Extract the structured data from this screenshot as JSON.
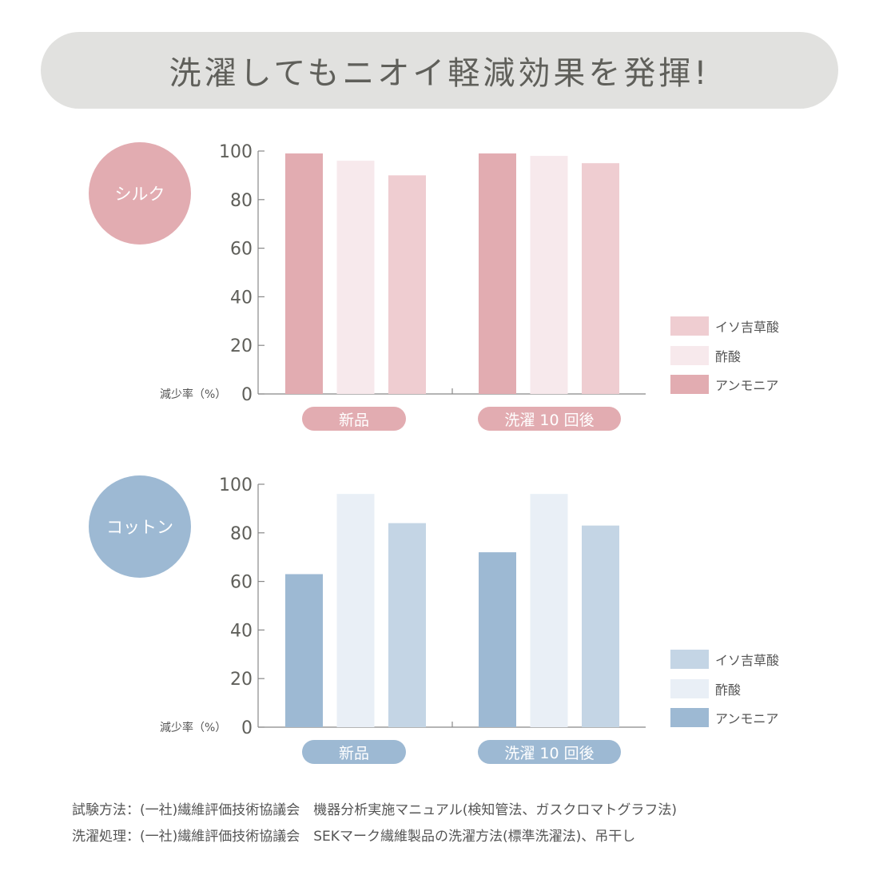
{
  "title": "洗濯してもニオイ軽減効果を発揮!",
  "chart_data": [
    {
      "type": "bar",
      "fabric": "シルク",
      "ylabel": "減少率（%）",
      "ylim": [
        0,
        100
      ],
      "yticks": [
        "0",
        "20",
        "40",
        "60",
        "80",
        "100"
      ],
      "categories": [
        "新品",
        "洗濯 10 回後"
      ],
      "series": [
        {
          "name": "アンモニア",
          "values": [
            99,
            99
          ],
          "color": "#e2acb1"
        },
        {
          "name": "酢酸",
          "values": [
            96,
            98
          ],
          "color": "#f7e9ec"
        },
        {
          "name": "イソ吉草酸",
          "values": [
            90,
            95
          ],
          "color": "#efcdd1"
        }
      ],
      "legend_order": [
        "イソ吉草酸",
        "酢酸",
        "アンモニア"
      ],
      "accent": "#e2acb1"
    },
    {
      "type": "bar",
      "fabric": "コットン",
      "ylabel": "減少率（%）",
      "ylim": [
        0,
        100
      ],
      "yticks": [
        "0",
        "20",
        "40",
        "60",
        "80",
        "100"
      ],
      "categories": [
        "新品",
        "洗濯 10 回後"
      ],
      "series": [
        {
          "name": "アンモニア",
          "values": [
            63,
            72
          ],
          "color": "#9db9d3"
        },
        {
          "name": "酢酸",
          "values": [
            96,
            96
          ],
          "color": "#e9eff6"
        },
        {
          "name": "イソ吉草酸",
          "values": [
            84,
            83
          ],
          "color": "#c4d5e5"
        }
      ],
      "legend_order": [
        "イソ吉草酸",
        "酢酸",
        "アンモニア"
      ],
      "accent": "#9db9d3"
    }
  ],
  "notes": [
    "試験方法：(一社)繊維評価技術協議会　機器分析実施マニュアル(検知管法、ガスクロマトグラフ法)",
    "洗濯処理：(一社)繊維評価技術協議会　SEKマーク繊維製品の洗濯方法(標準洗濯法)、吊干し"
  ]
}
